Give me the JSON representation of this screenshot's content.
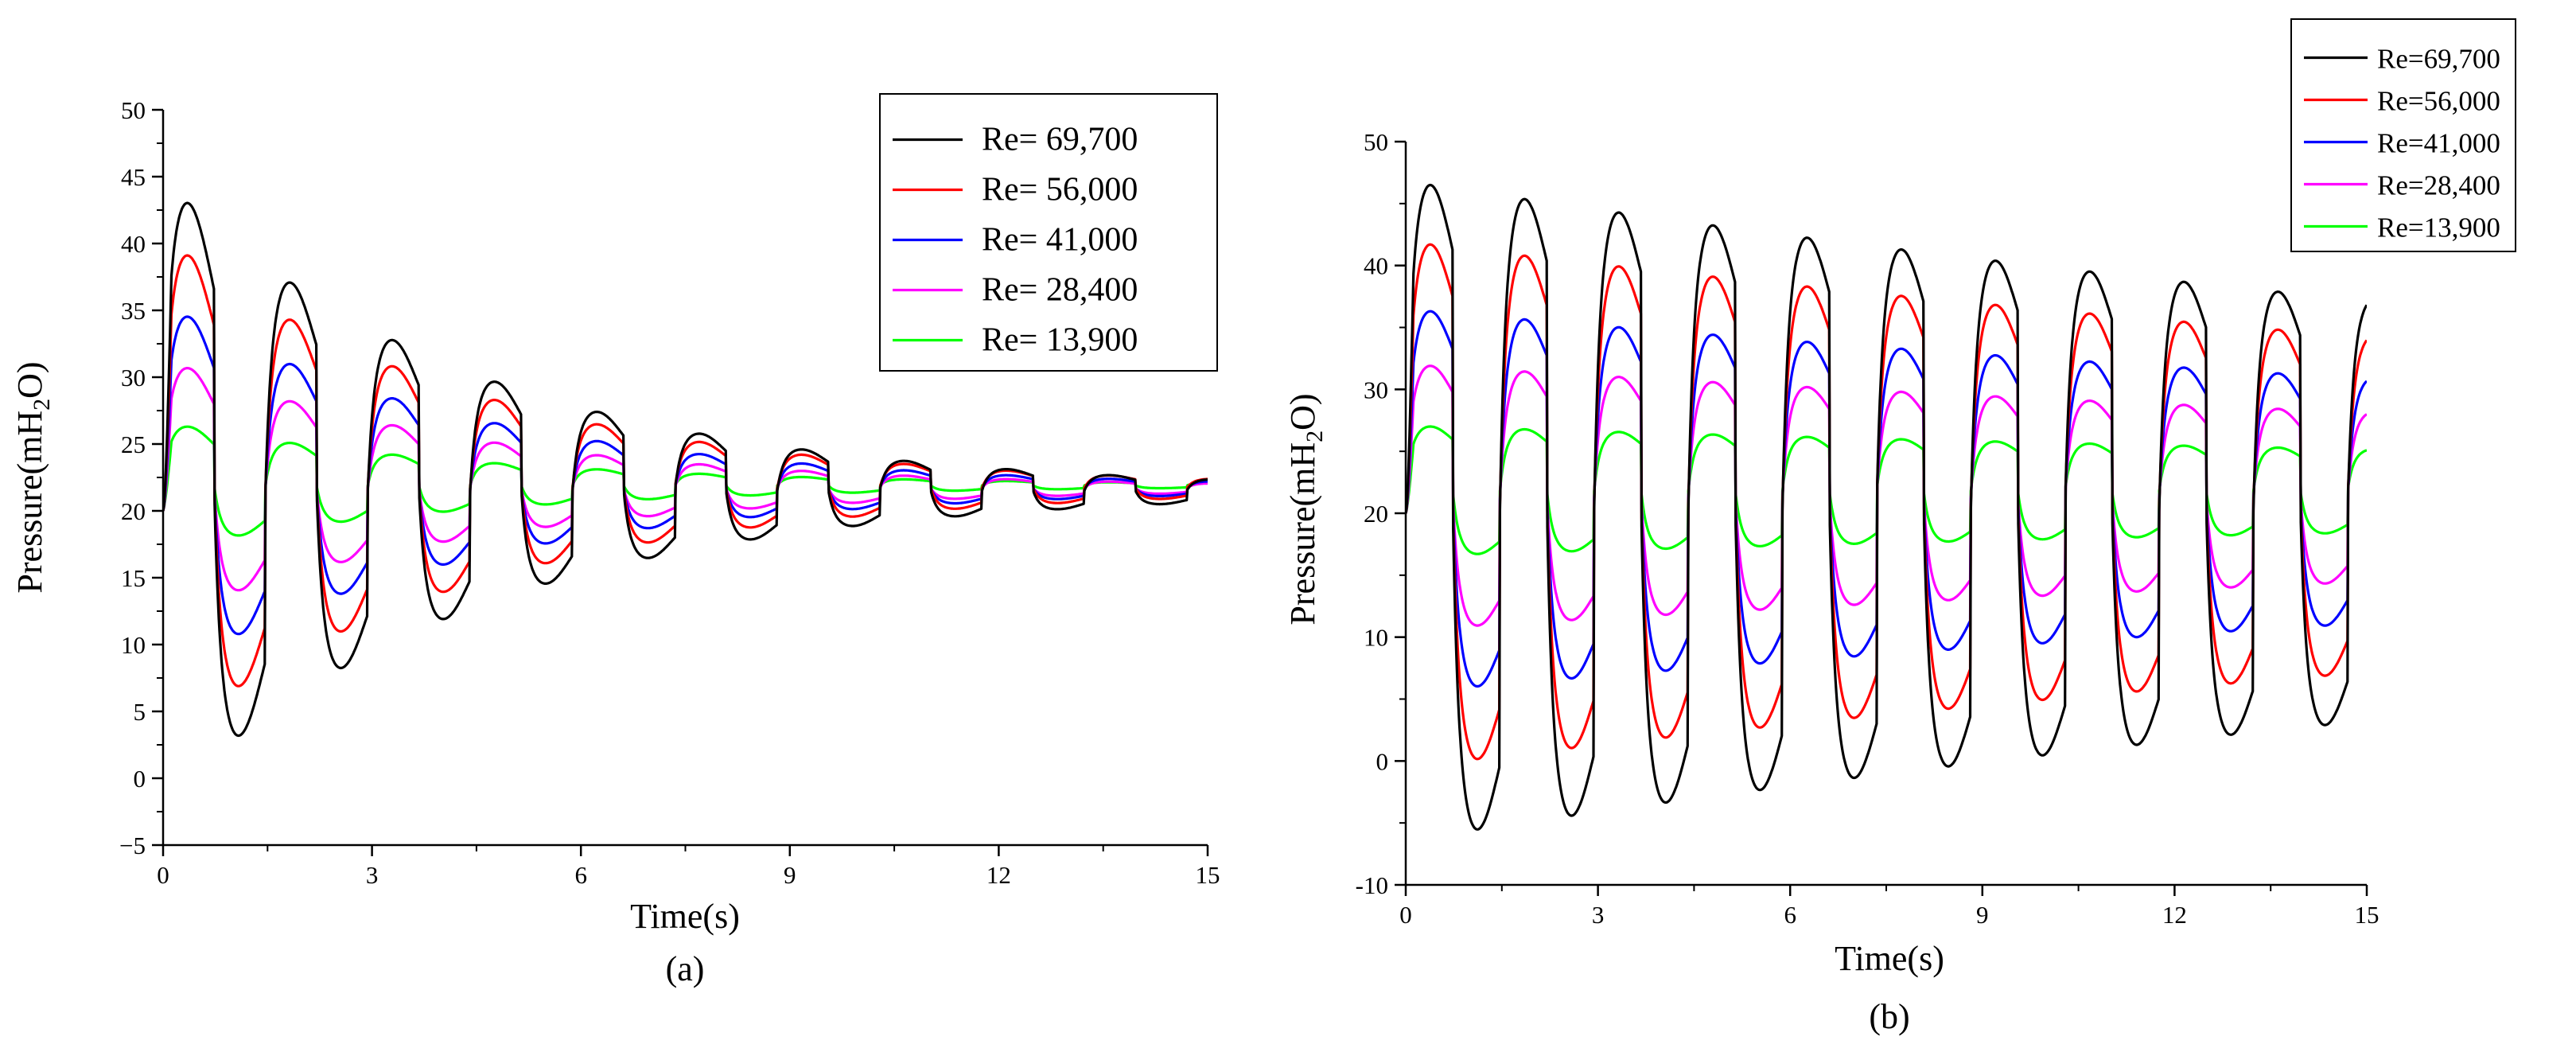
{
  "chart_data": [
    {
      "id": "a",
      "type": "line",
      "caption": "(a)",
      "xlabel": "Time(s)",
      "ylabel": "Pressure(mH2O)",
      "ylabel_main": "Pressure(mH",
      "ylabel_sub": "2",
      "ylabel_tail": "O)",
      "xlim": [
        0,
        15
      ],
      "ylim": [
        -5,
        50
      ],
      "xticks": [
        0,
        3,
        6,
        9,
        12,
        15
      ],
      "yticks": [
        -5,
        0,
        5,
        10,
        15,
        20,
        25,
        30,
        35,
        40,
        45,
        50
      ],
      "legend_position": "top-right",
      "series": [
        {
          "name": "Re= 69,700",
          "color": "#000000",
          "start": 20,
          "mean": 21.5,
          "amp": 23.5,
          "decay": 0.22,
          "period": 1.47,
          "shape": 3
        },
        {
          "name": "Re= 56,000",
          "color": "#ff0000",
          "start": 20,
          "mean": 21.7,
          "amp": 19.0,
          "decay": 0.22,
          "period": 1.47,
          "shape": 3
        },
        {
          "name": "Re= 41,000",
          "color": "#0000ff",
          "start": 20,
          "mean": 21.7,
          "amp": 14.0,
          "decay": 0.22,
          "period": 1.47,
          "shape": 3
        },
        {
          "name": "Re= 28,400",
          "color": "#ff00ff",
          "start": 20,
          "mean": 21.7,
          "amp": 9.8,
          "decay": 0.22,
          "period": 1.47,
          "shape": 3
        },
        {
          "name": "Re= 13,900",
          "color": "#00ff00",
          "start": 20,
          "mean": 21.9,
          "amp": 4.8,
          "decay": 0.22,
          "period": 1.47,
          "shape": 3
        }
      ]
    },
    {
      "id": "b",
      "type": "line",
      "caption": "(b)",
      "xlabel": "Time(s)",
      "ylabel": "Pressure(mH2O)",
      "ylabel_main": "Pressure(mH",
      "ylabel_sub": "2",
      "ylabel_tail": "O)",
      "xlim": [
        0,
        15
      ],
      "ylim": [
        -10,
        50
      ],
      "xticks": [
        0,
        3,
        6,
        9,
        12,
        15
      ],
      "yticks": [
        -10,
        0,
        10,
        20,
        30,
        40,
        50
      ],
      "legend_position": "top-right",
      "series": [
        {
          "name": "Re=69,700",
          "color": "#000000",
          "start": 20,
          "mean": 20.2,
          "amp": 26.8,
          "decay": 0.03,
          "period": 1.47,
          "shape": 4
        },
        {
          "name": "Re=56,000",
          "color": "#ff0000",
          "start": 20,
          "mean": 20.7,
          "amp": 21.4,
          "decay": 0.03,
          "period": 1.47,
          "shape": 4
        },
        {
          "name": "Re=41,000",
          "color": "#0000ff",
          "start": 20,
          "mean": 21.0,
          "amp": 15.6,
          "decay": 0.03,
          "period": 1.47,
          "shape": 4
        },
        {
          "name": "Re=28,400",
          "color": "#ff00ff",
          "start": 20,
          "mean": 21.3,
          "amp": 10.8,
          "decay": 0.03,
          "period": 1.47,
          "shape": 4
        },
        {
          "name": "Re=13,900",
          "color": "#00ff00",
          "start": 20,
          "mean": 21.8,
          "amp": 5.3,
          "decay": 0.03,
          "period": 1.47,
          "shape": 4
        }
      ]
    }
  ]
}
